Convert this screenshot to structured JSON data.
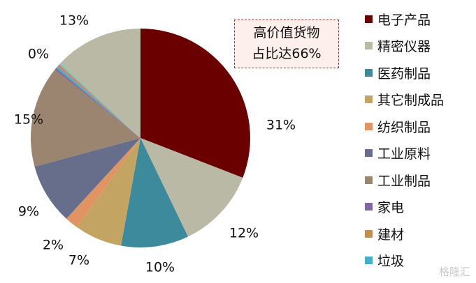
{
  "chart_data": {
    "type": "pie",
    "start_angle": "12 o'clock",
    "direction": "clockwise",
    "slices": [
      {
        "name": "电子产品",
        "value": 31,
        "label": "31%",
        "color": "#6b0000"
      },
      {
        "name": "精密仪器",
        "value": 12,
        "label": "12%",
        "color": "#bab9a6"
      },
      {
        "name": "医药制品",
        "value": 10,
        "label": "10%",
        "color": "#3d8a9c"
      },
      {
        "name": "其它制成品",
        "value": 7,
        "label": "7%",
        "color": "#c3a462"
      },
      {
        "name": "纺织制品",
        "value": 2,
        "label": "2%",
        "color": "#e09464"
      },
      {
        "name": "工业原料",
        "value": 9,
        "label": "9%",
        "color": "#676e8c"
      },
      {
        "name": "工业制品",
        "value": 15,
        "label": "15%",
        "color": "#9c8570"
      },
      {
        "name": "家电",
        "value": 0.3,
        "label": "",
        "color": "#8068a0"
      },
      {
        "name": "垃圾",
        "value": 0.3,
        "label": "0%",
        "color": "#45aecb"
      },
      {
        "name": "建材",
        "value": 0.2,
        "label": "",
        "color": "#c08f52"
      },
      {
        "name": "",
        "value": 0.2,
        "label": "",
        "color": "#c87890"
      },
      {
        "name": "",
        "value": 0.3,
        "label": "",
        "color": "#80c8b0"
      },
      {
        "name": "",
        "value": 13,
        "label": "13%",
        "color": "#bab9a6"
      }
    ],
    "legend": [
      "电子产品",
      "精密仪器",
      "医药制品",
      "其它制成品",
      "纺织制品",
      "工业原料",
      "工业制品",
      "家电",
      "建材",
      "垃圾"
    ],
    "legend_placement": "right",
    "annotation": {
      "line1": "高价值货物",
      "line2": "占比达66%"
    }
  },
  "watermark": "格隆汇"
}
